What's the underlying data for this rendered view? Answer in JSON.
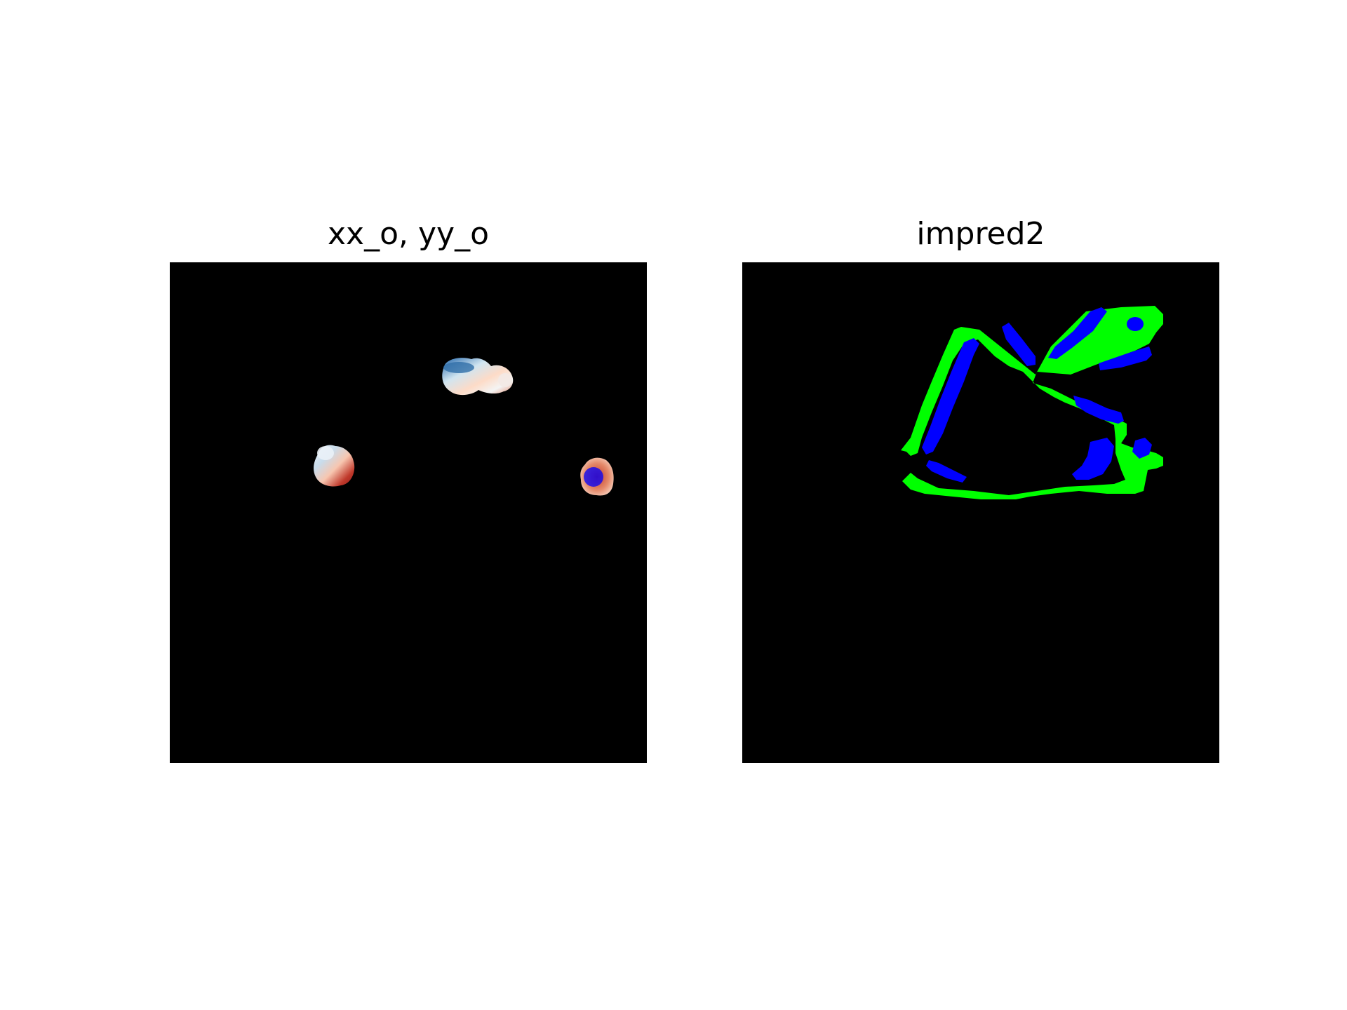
{
  "figure": {
    "panels": [
      {
        "id": "left",
        "title": "xx_o, yy_o"
      },
      {
        "id": "right",
        "title": "impred2"
      }
    ]
  },
  "colors": {
    "background": "#000000",
    "green": "#00ff00",
    "blue": "#0000ff",
    "red_blue_map_low": "#2166ac",
    "red_blue_map_high": "#b2182b"
  }
}
